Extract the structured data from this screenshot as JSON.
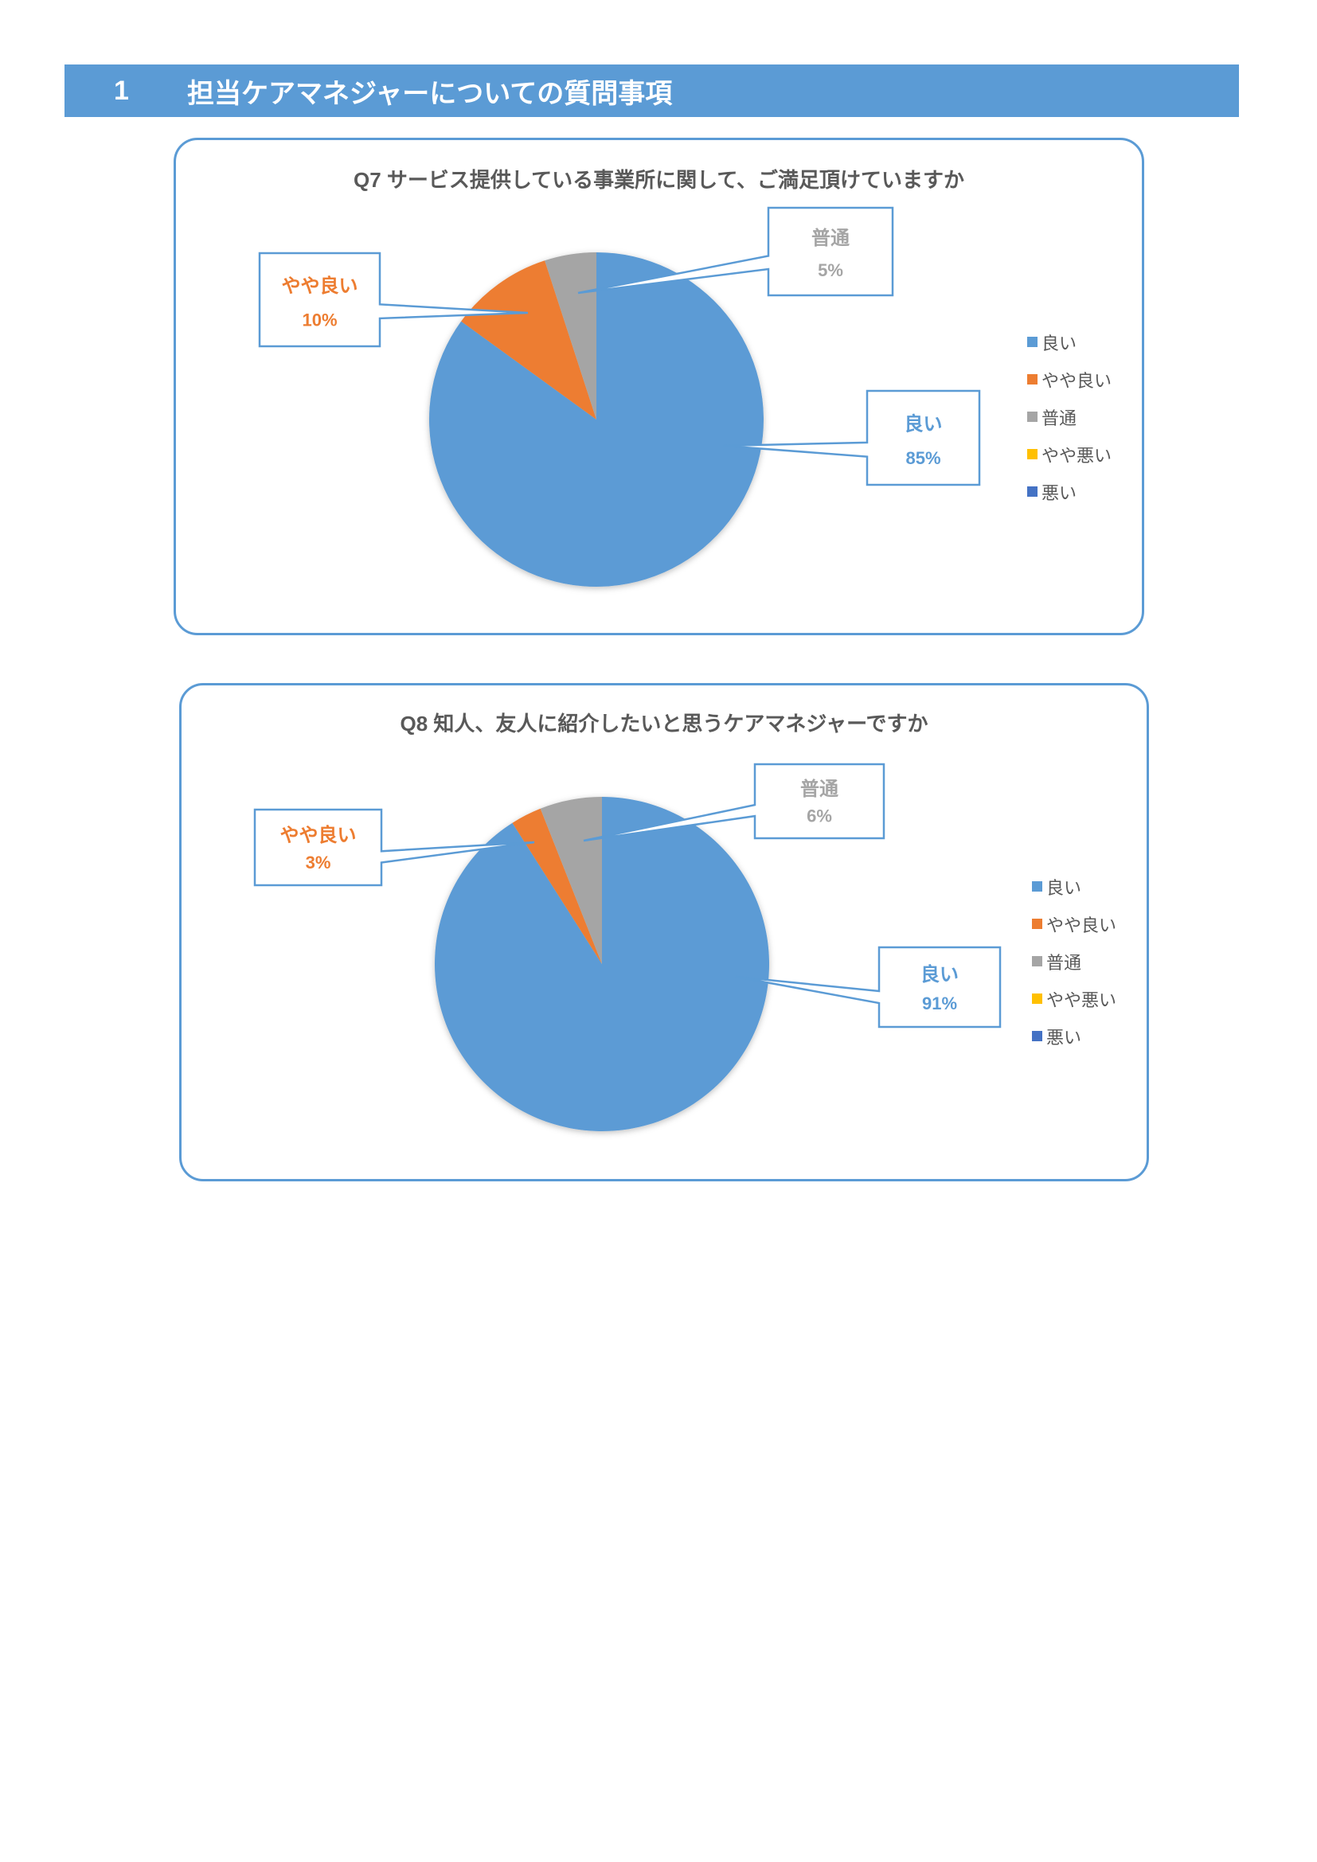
{
  "section": {
    "number": "1",
    "title": "担当ケアマネジャーについての質問事項"
  },
  "colors": {
    "良い": "#5B9BD5",
    "やや良い": "#ED7D31",
    "普通": "#A5A5A5",
    "やや悪い": "#FFC000",
    "悪い": "#4472C4",
    "border": "#5B9BD5",
    "title": "#595959"
  },
  "chart_data": [
    {
      "type": "pie",
      "title": "Q7 サービス提供している事業所に関して、ご満足頂けていますか",
      "categories": [
        "良い",
        "やや良い",
        "普通",
        "やや悪い",
        "悪い"
      ],
      "values": [
        85,
        10,
        5,
        0,
        0
      ],
      "data_labels": [
        {
          "category": "良い",
          "value": "85%"
        },
        {
          "category": "やや良い",
          "value": "10%"
        },
        {
          "category": "普通",
          "value": "5%"
        }
      ],
      "legend": {
        "position": "right",
        "entries": [
          "良い",
          "やや良い",
          "普通",
          "やや悪い",
          "悪い"
        ]
      }
    },
    {
      "type": "pie",
      "title": "Q8 知人、友人に紹介したいと思うケアマネジャーですか",
      "categories": [
        "良い",
        "やや良い",
        "普通",
        "やや悪い",
        "悪い"
      ],
      "values": [
        91,
        3,
        6,
        0,
        0
      ],
      "data_labels": [
        {
          "category": "良い",
          "value": "91%"
        },
        {
          "category": "やや良い",
          "value": "3%"
        },
        {
          "category": "普通",
          "value": "6%"
        }
      ],
      "legend": {
        "position": "right",
        "entries": [
          "良い",
          "やや良い",
          "普通",
          "やや悪い",
          "悪い"
        ]
      }
    }
  ]
}
